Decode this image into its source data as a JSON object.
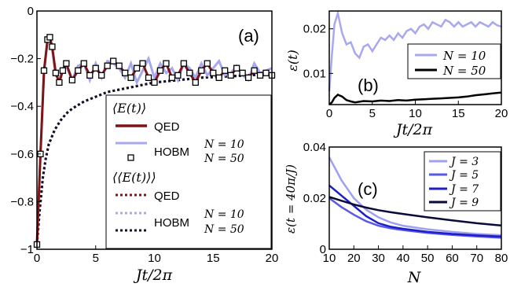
{
  "chart_data": [
    {
      "type": "line",
      "panel": "(a)",
      "xlabel": "Jt/2π",
      "ylabel": "",
      "xlim": [
        0,
        20
      ],
      "ylim": [
        -1,
        0
      ],
      "xticks": [
        "0",
        "5",
        "10",
        "15",
        "20"
      ],
      "yticks": [
        "0",
        "−0.2",
        "−0.4",
        "−0.6",
        "−0.8",
        "−1"
      ],
      "colors": {
        "qed": "#7f1414",
        "hobm": "#a8a8ee",
        "square": "#000000",
        "avg50": "#10102a"
      },
      "legend": {
        "header1": "⟨E(t)⟩",
        "qed": "QED",
        "hobm": "HOBM",
        "n10": "N = 10",
        "n50": "N = 50",
        "header2": "⟨⟨E(t)⟩⟩",
        "qed2": "QED",
        "hobm2": "HOBM",
        "n10b": "N = 10",
        "n50b": "N = 50"
      },
      "series": [
        {
          "key": "qed",
          "x": [
            0,
            0.3,
            0.6,
            0.9,
            1.1,
            1.3,
            1.6,
            1.9,
            2.2,
            2.5,
            3.0,
            3.5,
            4.0,
            4.5,
            5.0,
            5.5,
            6.0,
            6.5,
            7.0,
            7.5,
            8.0,
            8.5,
            9.0,
            9.5,
            10.0,
            10.5,
            11.0,
            11.5,
            12.0,
            12.5,
            13.0,
            13.5,
            14.0,
            14.5,
            15.0,
            15.5,
            16.0,
            16.5,
            17.0,
            17.5,
            18.0,
            18.5,
            19.0,
            19.5,
            20.0
          ],
          "y": [
            -0.98,
            -0.6,
            -0.25,
            -0.12,
            -0.11,
            -0.15,
            -0.26,
            -0.3,
            -0.25,
            -0.22,
            -0.29,
            -0.25,
            -0.22,
            -0.27,
            -0.24,
            -0.27,
            -0.23,
            -0.21,
            -0.23,
            -0.26,
            -0.28,
            -0.24,
            -0.22,
            -0.28,
            -0.3,
            -0.25,
            -0.22,
            -0.28,
            -0.27,
            -0.22,
            -0.26,
            -0.3,
            -0.25,
            -0.22,
            -0.26,
            -0.28,
            -0.25,
            -0.27,
            -0.24,
            -0.26,
            -0.28,
            -0.25,
            -0.27,
            -0.26,
            -0.27
          ]
        },
        {
          "key": "hobm10",
          "x": [
            0,
            0.3,
            0.6,
            0.9,
            1.1,
            1.3,
            1.6,
            1.9,
            2.2,
            2.5,
            3.0,
            3.5,
            4.0,
            4.5,
            5.0,
            5.5,
            6.0,
            6.5,
            7.0,
            7.5,
            8.0,
            8.5,
            9.0,
            9.5,
            10.0,
            10.5,
            11.0,
            11.5,
            12.0,
            12.5,
            13.0,
            13.5,
            14.0,
            14.5,
            15.0,
            15.5,
            16.0,
            16.5,
            17.0,
            17.5,
            18.0,
            18.5,
            19.0,
            19.5,
            20.0
          ],
          "y": [
            -0.98,
            -0.6,
            -0.26,
            -0.12,
            -0.11,
            -0.16,
            -0.27,
            -0.29,
            -0.24,
            -0.23,
            -0.29,
            -0.23,
            -0.22,
            -0.29,
            -0.22,
            -0.28,
            -0.21,
            -0.22,
            -0.24,
            -0.28,
            -0.22,
            -0.3,
            -0.25,
            -0.2,
            -0.28,
            -0.22,
            -0.26,
            -0.24,
            -0.29,
            -0.22,
            -0.24,
            -0.28,
            -0.22,
            -0.27,
            -0.24,
            -0.21,
            -0.27,
            -0.26,
            -0.23,
            -0.27,
            -0.29,
            -0.22,
            -0.26,
            -0.25,
            -0.24
          ]
        },
        {
          "key": "hobm50",
          "x": [
            0,
            0.3,
            0.6,
            0.9,
            1.1,
            1.3,
            1.6,
            1.9,
            2.2,
            2.5,
            3.0,
            3.5,
            4.0,
            4.5,
            5.0,
            5.5,
            6.0,
            6.5,
            7.0,
            7.5,
            8.0,
            8.5,
            9.0,
            9.5,
            10.0,
            10.5,
            11.0,
            11.5,
            12.0,
            12.5,
            13.0,
            13.5,
            14.0,
            14.5,
            15.0,
            15.5,
            16.0,
            16.5,
            17.0,
            17.5,
            18.0,
            18.5,
            19.0,
            19.5,
            20.0
          ],
          "y": [
            -0.98,
            -0.6,
            -0.25,
            -0.12,
            -0.11,
            -0.15,
            -0.26,
            -0.3,
            -0.25,
            -0.22,
            -0.29,
            -0.25,
            -0.22,
            -0.27,
            -0.24,
            -0.27,
            -0.23,
            -0.21,
            -0.23,
            -0.26,
            -0.28,
            -0.24,
            -0.22,
            -0.28,
            -0.3,
            -0.25,
            -0.22,
            -0.28,
            -0.27,
            -0.22,
            -0.26,
            -0.3,
            -0.25,
            -0.22,
            -0.26,
            -0.28,
            -0.25,
            -0.27,
            -0.24,
            -0.26,
            -0.28,
            -0.25,
            -0.27,
            -0.26,
            -0.27
          ]
        },
        {
          "key": "avg_qed",
          "x": [
            0,
            0.25,
            0.5,
            0.75,
            1,
            1.5,
            2,
            2.5,
            3,
            4,
            5,
            6,
            7,
            8,
            9,
            10,
            12,
            14,
            16,
            18,
            20
          ],
          "y": [
            -0.98,
            -0.83,
            -0.7,
            -0.62,
            -0.56,
            -0.5,
            -0.46,
            -0.43,
            -0.41,
            -0.38,
            -0.36,
            -0.34,
            -0.33,
            -0.32,
            -0.31,
            -0.3,
            -0.29,
            -0.28,
            -0.275,
            -0.27,
            -0.265
          ]
        },
        {
          "key": "avg_hobm10",
          "x": [
            0,
            0.25,
            0.5,
            0.75,
            1,
            1.5,
            2,
            2.5,
            3,
            4,
            5,
            6,
            7,
            8,
            9,
            10,
            12,
            14,
            16,
            18,
            20
          ],
          "y": [
            -0.98,
            -0.83,
            -0.7,
            -0.62,
            -0.56,
            -0.5,
            -0.46,
            -0.43,
            -0.41,
            -0.38,
            -0.36,
            -0.34,
            -0.33,
            -0.32,
            -0.31,
            -0.3,
            -0.29,
            -0.28,
            -0.275,
            -0.27,
            -0.265
          ]
        },
        {
          "key": "avg_hobm50",
          "x": [
            0,
            0.25,
            0.5,
            0.75,
            1,
            1.5,
            2,
            2.5,
            3,
            4,
            5,
            6,
            7,
            8,
            9,
            10,
            12,
            14,
            16,
            18,
            20
          ],
          "y": [
            -0.98,
            -0.83,
            -0.7,
            -0.62,
            -0.56,
            -0.5,
            -0.46,
            -0.43,
            -0.41,
            -0.38,
            -0.36,
            -0.34,
            -0.33,
            -0.32,
            -0.31,
            -0.3,
            -0.29,
            -0.28,
            -0.275,
            -0.27,
            -0.265
          ]
        }
      ]
    },
    {
      "type": "line",
      "panel": "(b)",
      "xlabel": "Jt/2π",
      "ylabel": "ε(t)",
      "xlim": [
        0,
        20
      ],
      "ylim": [
        0.003,
        0.024
      ],
      "xticks": [
        "0",
        "5",
        "10",
        "15",
        "20"
      ],
      "yticks": [
        "0.02",
        "0.01"
      ],
      "legend": {
        "n10": "N = 10",
        "n50": "N = 50"
      },
      "series": [
        {
          "key": "n10",
          "color": "#a8a8ee",
          "x": [
            0,
            0.3,
            0.6,
            1,
            1.5,
            2,
            2.5,
            3,
            3.5,
            4,
            4.5,
            5,
            5.5,
            6,
            6.5,
            7,
            7.5,
            8,
            8.5,
            9,
            9.5,
            10,
            10.5,
            11,
            11.5,
            12,
            12.5,
            13,
            13.5,
            14,
            14.5,
            15,
            15.5,
            16,
            16.5,
            17,
            17.5,
            18,
            18.5,
            19,
            19.5,
            20
          ],
          "y": [
            0.006,
            0.014,
            0.021,
            0.0235,
            0.019,
            0.0165,
            0.017,
            0.0145,
            0.0135,
            0.016,
            0.0165,
            0.015,
            0.0165,
            0.018,
            0.0175,
            0.0185,
            0.0175,
            0.019,
            0.018,
            0.0195,
            0.02,
            0.019,
            0.0205,
            0.021,
            0.02,
            0.0215,
            0.021,
            0.0205,
            0.022,
            0.0215,
            0.0205,
            0.0215,
            0.0205,
            0.021,
            0.0215,
            0.0205,
            0.0215,
            0.021,
            0.0205,
            0.0215,
            0.0208,
            0.0205
          ]
        },
        {
          "key": "n50",
          "color": "#000000",
          "x": [
            0,
            0.3,
            0.6,
            1,
            1.5,
            2,
            2.5,
            3,
            4,
            5,
            6,
            7,
            8,
            9,
            10,
            11,
            12,
            13,
            14,
            15,
            16,
            17,
            18,
            19,
            20
          ],
          "y": [
            0.003,
            0.0035,
            0.0045,
            0.0052,
            0.0048,
            0.004,
            0.0037,
            0.0035,
            0.0038,
            0.0037,
            0.0039,
            0.0038,
            0.004,
            0.0039,
            0.0041,
            0.0042,
            0.0043,
            0.0044,
            0.0045,
            0.0046,
            0.0048,
            0.0051,
            0.0053,
            0.0055,
            0.0057
          ]
        }
      ]
    },
    {
      "type": "line",
      "panel": "(c)",
      "xlabel": "N",
      "ylabel": "ε(t = 40π/J)",
      "xlim": [
        10,
        80
      ],
      "ylim": [
        0,
        0.04
      ],
      "xticks": [
        "10",
        "20",
        "30",
        "40",
        "50",
        "60",
        "70",
        "80"
      ],
      "yticks": [
        "0.04",
        "0.02",
        "0"
      ],
      "legend": {
        "j3": "J = 3",
        "j5": "J = 5",
        "j7": "J = 7",
        "j9": "J = 9"
      },
      "series": [
        {
          "key": "j3",
          "color": "#a0a0f2",
          "x": [
            10,
            15,
            20,
            25,
            30,
            35,
            40,
            50,
            60,
            70,
            80
          ],
          "y": [
            0.036,
            0.027,
            0.02,
            0.0155,
            0.0125,
            0.0105,
            0.0092,
            0.0078,
            0.0068,
            0.006,
            0.0055
          ]
        },
        {
          "key": "j5",
          "color": "#5a5ae8",
          "x": [
            10,
            15,
            20,
            25,
            30,
            35,
            40,
            50,
            60,
            70,
            80
          ],
          "y": [
            0.02,
            0.0165,
            0.0135,
            0.011,
            0.0092,
            0.0082,
            0.0075,
            0.0064,
            0.0056,
            0.005,
            0.0045
          ]
        },
        {
          "key": "j7",
          "color": "#1e1ec8",
          "x": [
            10,
            15,
            20,
            25,
            30,
            35,
            40,
            50,
            60,
            70,
            80
          ],
          "y": [
            0.025,
            0.021,
            0.017,
            0.013,
            0.0102,
            0.0088,
            0.008,
            0.0068,
            0.006,
            0.0054,
            0.005
          ]
        },
        {
          "key": "j9",
          "color": "#0a0a38",
          "x": [
            10,
            15,
            20,
            25,
            30,
            35,
            40,
            50,
            60,
            70,
            80
          ],
          "y": [
            0.0205,
            0.019,
            0.0175,
            0.0163,
            0.0153,
            0.0145,
            0.0138,
            0.0125,
            0.0113,
            0.0102,
            0.0093
          ]
        }
      ]
    }
  ]
}
